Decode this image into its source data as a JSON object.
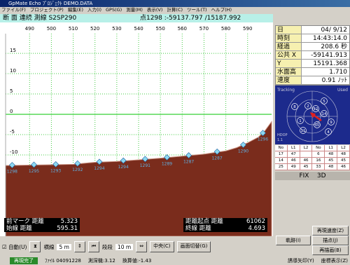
{
  "title_bar": {
    "title": "GpMate Echo   ﾌﾟﾛｼﾞｪｸﾄ   DEMO.DATA"
  },
  "menu": [
    "ファイル(F)",
    "プロジェクト(P)",
    "編集(E)",
    "入力(I)",
    "GPS(G)",
    "測量(M)",
    "表示(V)",
    "計算(C)",
    "ツール(T)",
    "ヘルプ(H)"
  ],
  "profile": {
    "header": "断 面 連続 測線 S2SP290",
    "point_info": "点1298 :-59137.797 /15187.992",
    "xlim": [
      479,
      601
    ],
    "xticks": [
      490,
      500,
      510,
      520,
      530,
      540,
      550,
      560,
      570,
      580,
      590
    ],
    "ylim": [
      -30,
      22.6
    ],
    "yticks": [
      15,
      10,
      5,
      0,
      -5,
      -10
    ],
    "water_level": 0,
    "x": [
      479,
      490,
      500,
      510,
      520,
      530,
      540,
      550,
      560,
      570,
      580,
      585,
      590,
      595,
      598,
      601
    ],
    "values": [
      -12.6,
      -12.5,
      -12.4,
      -12.3,
      -11.8,
      -11.6,
      -11.2,
      -10.8,
      -10.3,
      -9.8,
      -9.0,
      -8.2,
      -7.0,
      -5.6,
      -4.0,
      -1.8
    ],
    "markers": [
      {
        "x": 482,
        "y": -12.5,
        "label": "1298"
      },
      {
        "x": 492,
        "y": -12.4,
        "label": "1295"
      },
      {
        "x": 502,
        "y": -12.3,
        "label": "1293"
      },
      {
        "x": 512,
        "y": -12.1,
        "label": "1292"
      },
      {
        "x": 522,
        "y": -11.7,
        "label": "1294"
      },
      {
        "x": 533,
        "y": -11.4,
        "label": "1294"
      },
      {
        "x": 543,
        "y": -11.0,
        "label": "1291"
      },
      {
        "x": 553,
        "y": -10.6,
        "label": "1289"
      },
      {
        "x": 563,
        "y": -10.1,
        "label": "1287"
      },
      {
        "x": 576,
        "y": -9.2,
        "label": "1287"
      },
      {
        "x": 588,
        "y": -7.5,
        "label": "1290"
      },
      {
        "x": 597,
        "y": -4.6,
        "label": "1296"
      }
    ]
  },
  "overlay": {
    "left": [
      {
        "label": "前マーク 距離",
        "value": "5.323"
      },
      {
        "label": "始線 距離",
        "value": "595.31"
      }
    ],
    "right": [
      {
        "label": "距離起点 距離",
        "value": "61062"
      },
      {
        "label": "終線 距離",
        "value": "4.693"
      }
    ]
  },
  "info": [
    {
      "label": "日",
      "value": "04/ 9/12"
    },
    {
      "label": "時刻",
      "value": "14:43:14.0"
    },
    {
      "label": "経過",
      "value": "208.6 秒"
    },
    {
      "label": "公共 X",
      "value": "-59141.913"
    },
    {
      "label": "Y",
      "value": "15191.368"
    },
    {
      "label": "水面高",
      "value": "1.710"
    },
    {
      "label": "速度",
      "value": "0.91 ﾉｯﾄ"
    }
  ],
  "sky": {
    "tracking": "Tracking",
    "used": "Used",
    "hdop_label": "HDOP",
    "hdop": "1.1",
    "satellites": [
      "2",
      "5",
      "12",
      "14",
      "1",
      "8",
      "10",
      "9",
      "11",
      "4"
    ]
  },
  "sat_table": [
    [
      "No",
      "L1",
      "L2",
      "No",
      "L1",
      "L2"
    ],
    [
      "17",
      "47",
      "",
      "6",
      "48",
      "48"
    ],
    [
      "14",
      "46",
      "46",
      "16",
      "45",
      "45"
    ],
    [
      "25",
      "49",
      "45",
      "33",
      "48",
      "46"
    ]
  ],
  "fix": {
    "label": "FIX",
    "value": "3D"
  },
  "side_buttons": [
    "再現速度(Z)",
    "軌跡(I)",
    "描点(J)",
    "再描画(B)"
  ],
  "toolbar": {
    "auto": "自動(U)",
    "hline": "横線",
    "hstep": "5 m",
    "step": "段段",
    "step_value": "10 m",
    "center": "中央(C)",
    "switch": "画面切替(G)"
  },
  "status": {
    "state": "再現完了",
    "file": "ﾌｧｲﾙ 04091228",
    "sounder": "測深機:3.12",
    "conv": "換算値:-1.43",
    "guide": "誘導矢印(Y)",
    "coord": "座標表示(Z)"
  }
}
